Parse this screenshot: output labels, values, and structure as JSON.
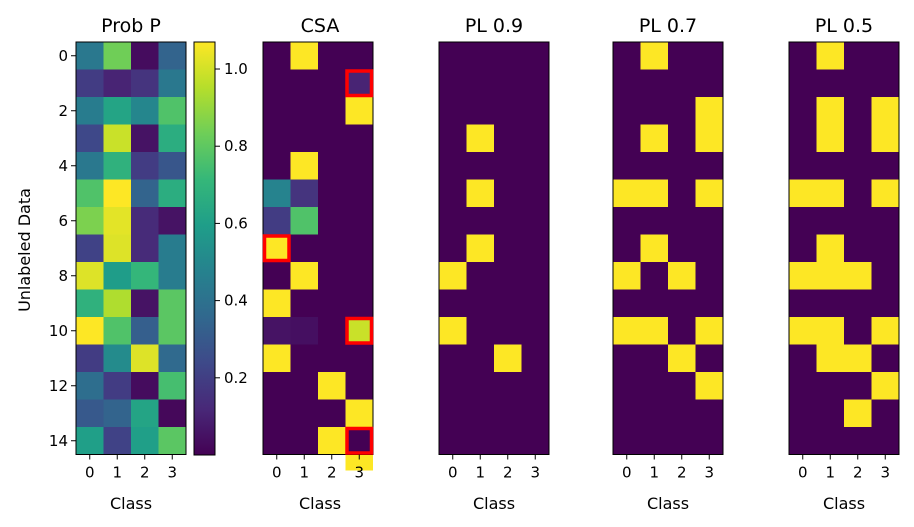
{
  "colors": {
    "viridis": [
      "#440154",
      "#482878",
      "#3e4989",
      "#31688e",
      "#26828e",
      "#1f9e89",
      "#35b779",
      "#6ece58",
      "#b5de2b",
      "#fde725"
    ],
    "background": "#440154",
    "high": "#fde725",
    "highlight": "#ff0000"
  },
  "chart_data": [
    {
      "id": "prob",
      "type": "heatmap",
      "title": "Prob P",
      "xlabel": "Class",
      "ylabel": "Unlabeled Data",
      "x_ticks": [
        "0",
        "1",
        "2",
        "3"
      ],
      "y_ticks": [
        "0",
        "2",
        "4",
        "6",
        "8",
        "10",
        "12",
        "14"
      ],
      "rows": 15,
      "cols": 4,
      "values": [
        [
          0.4,
          0.78,
          0.03,
          0.32
        ],
        [
          0.18,
          0.1,
          0.15,
          0.4
        ],
        [
          0.42,
          0.58,
          0.46,
          0.72
        ],
        [
          0.22,
          0.92,
          0.05,
          0.62
        ],
        [
          0.4,
          0.64,
          0.18,
          0.27
        ],
        [
          0.72,
          1.0,
          0.32,
          0.62
        ],
        [
          0.8,
          0.96,
          0.12,
          0.05
        ],
        [
          0.2,
          0.95,
          0.12,
          0.42
        ],
        [
          0.95,
          0.55,
          0.66,
          0.42
        ],
        [
          0.64,
          0.88,
          0.05,
          0.74
        ],
        [
          1.0,
          0.72,
          0.3,
          0.74
        ],
        [
          0.18,
          0.48,
          0.95,
          0.34
        ],
        [
          0.36,
          0.18,
          0.03,
          0.7
        ],
        [
          0.28,
          0.32,
          0.58,
          0.02
        ],
        [
          0.56,
          0.2,
          0.56,
          0.74
        ]
      ]
    },
    {
      "id": "colorbar",
      "type": "colorbar",
      "vmin": 0.0,
      "vmax": 1.07,
      "ticks": [
        0.2,
        0.4,
        0.6,
        0.8,
        1.0
      ],
      "tick_labels": [
        "0.2",
        "0.4",
        "0.6",
        "0.8",
        "1.0"
      ]
    },
    {
      "id": "csa",
      "type": "heatmap",
      "title": "CSA",
      "xlabel": "Class",
      "x_ticks": [
        "0",
        "1",
        "2",
        "3"
      ],
      "rows": 15,
      "cols": 4,
      "values": [
        [
          0,
          1,
          0,
          0
        ],
        [
          0,
          0,
          0,
          0.1
        ],
        [
          0,
          0,
          0,
          1
        ],
        [
          0,
          0,
          0,
          0
        ],
        [
          0,
          1,
          0,
          0
        ],
        [
          0.45,
          0.15,
          0,
          0
        ],
        [
          0.18,
          0.72,
          0,
          0
        ],
        [
          1,
          0,
          0,
          0
        ],
        [
          0,
          1,
          0,
          0
        ],
        [
          1,
          0,
          0,
          0
        ],
        [
          0.05,
          0.04,
          0,
          0.92
        ],
        [
          1,
          0,
          0,
          0
        ],
        [
          0,
          0,
          1,
          0
        ],
        [
          0,
          0,
          0,
          1
        ],
        [
          0,
          0,
          1,
          0
        ]
      ],
      "highlights": [
        [
          1,
          3
        ],
        [
          7,
          0
        ],
        [
          10,
          3
        ],
        [
          14,
          3
        ]
      ],
      "extra_cell": [
        15,
        3,
        1
      ]
    },
    {
      "id": "pl09",
      "type": "heatmap",
      "title": "PL 0.9",
      "xlabel": "Class",
      "x_ticks": [
        "0",
        "1",
        "2",
        "3"
      ],
      "rows": 15,
      "cols": 4,
      "values": [
        [
          0,
          0,
          0,
          0
        ],
        [
          0,
          0,
          0,
          0
        ],
        [
          0,
          0,
          0,
          0
        ],
        [
          0,
          1,
          0,
          0
        ],
        [
          0,
          0,
          0,
          0
        ],
        [
          0,
          1,
          0,
          0
        ],
        [
          0,
          0,
          0,
          0
        ],
        [
          0,
          1,
          0,
          0
        ],
        [
          1,
          0,
          0,
          0
        ],
        [
          0,
          0,
          0,
          0
        ],
        [
          1,
          0,
          0,
          0
        ],
        [
          0,
          0,
          1,
          0
        ],
        [
          0,
          0,
          0,
          0
        ],
        [
          0,
          0,
          0,
          0
        ],
        [
          0,
          0,
          0,
          0
        ]
      ]
    },
    {
      "id": "pl07",
      "type": "heatmap",
      "title": "PL 0.7",
      "xlabel": "Class",
      "x_ticks": [
        "0",
        "1",
        "2",
        "3"
      ],
      "rows": 15,
      "cols": 4,
      "values": [
        [
          0,
          1,
          0,
          0
        ],
        [
          0,
          0,
          0,
          0
        ],
        [
          0,
          0,
          0,
          1
        ],
        [
          0,
          1,
          0,
          1
        ],
        [
          0,
          0,
          0,
          0
        ],
        [
          1,
          1,
          0,
          1
        ],
        [
          0,
          0,
          0,
          0
        ],
        [
          0,
          1,
          0,
          0
        ],
        [
          1,
          0,
          1,
          0
        ],
        [
          0,
          0,
          0,
          0
        ],
        [
          1,
          1,
          0,
          1
        ],
        [
          0,
          0,
          1,
          0
        ],
        [
          0,
          0,
          0,
          1
        ],
        [
          0,
          0,
          0,
          0
        ],
        [
          0,
          0,
          0,
          0
        ]
      ]
    },
    {
      "id": "pl05",
      "type": "heatmap",
      "title": "PL 0.5",
      "xlabel": "Class",
      "x_ticks": [
        "0",
        "1",
        "2",
        "3"
      ],
      "rows": 15,
      "cols": 4,
      "values": [
        [
          0,
          1,
          0,
          0
        ],
        [
          0,
          0,
          0,
          0
        ],
        [
          0,
          1,
          0,
          1
        ],
        [
          0,
          1,
          0,
          1
        ],
        [
          0,
          0,
          0,
          0
        ],
        [
          1,
          1,
          0,
          1
        ],
        [
          0,
          0,
          0,
          0
        ],
        [
          0,
          1,
          0,
          0
        ],
        [
          1,
          1,
          1,
          0
        ],
        [
          0,
          0,
          0,
          0
        ],
        [
          1,
          1,
          0,
          1
        ],
        [
          0,
          1,
          1,
          0
        ],
        [
          0,
          0,
          0,
          1
        ],
        [
          0,
          0,
          1,
          0
        ],
        [
          0,
          0,
          0,
          0
        ]
      ]
    }
  ]
}
